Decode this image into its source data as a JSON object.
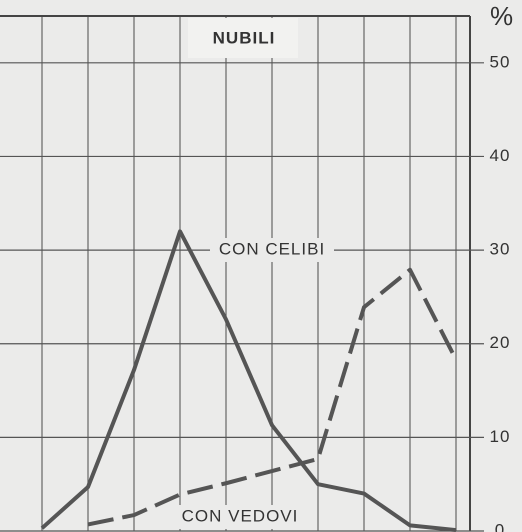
{
  "chart_data": {
    "type": "line",
    "title": "NUBILI",
    "y_label": "%",
    "categories": [
      null,
      null,
      null,
      null,
      null,
      null,
      null,
      null,
      null,
      null
    ],
    "series": [
      {
        "name": "CON CELIBI",
        "color": "#555555",
        "dash": false,
        "values": [
          0.3,
          4.7,
          17.2,
          32,
          22.6,
          11.3,
          5,
          4,
          0.6,
          0.1
        ]
      },
      {
        "name": "CON VEDOVI",
        "color": "#555555",
        "dash": true,
        "values": [
          null,
          0.7,
          1.7,
          3.9,
          5.1,
          6.4,
          7.7,
          23.9,
          27.9,
          18.3
        ]
      }
    ],
    "ylim": [
      0,
      55
    ],
    "yticks": [
      0,
      10,
      20,
      30,
      40,
      50
    ],
    "grid": true
  }
}
